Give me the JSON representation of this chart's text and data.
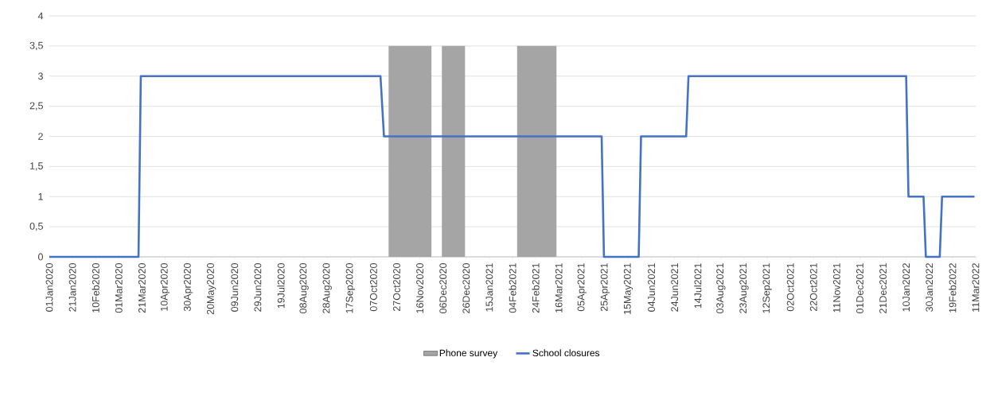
{
  "chart_data": {
    "type": "line",
    "legend": "bottom",
    "grid": "y",
    "marker": "none",
    "line_style": "solid",
    "xlim": [
      "2020-01-01",
      "2022-03-11"
    ],
    "xticks": [
      {
        "value": "2020-01-01",
        "label": "01Jan2020"
      },
      {
        "value": "2020-01-21",
        "label": "21Jan2020"
      },
      {
        "value": "2020-02-10",
        "label": "10Feb2020"
      },
      {
        "value": "2020-03-01",
        "label": "01Mar2020"
      },
      {
        "value": "2020-03-21",
        "label": "21Mar2020"
      },
      {
        "value": "2020-04-10",
        "label": "10Apr2020"
      },
      {
        "value": "2020-04-30",
        "label": "30Apr2020"
      },
      {
        "value": "2020-05-20",
        "label": "20May2020"
      },
      {
        "value": "2020-06-09",
        "label": "09Jun2020"
      },
      {
        "value": "2020-06-29",
        "label": "29Jun2020"
      },
      {
        "value": "2020-07-19",
        "label": "19Jul2020"
      },
      {
        "value": "2020-08-08",
        "label": "08Aug2020"
      },
      {
        "value": "2020-08-28",
        "label": "28Aug2020"
      },
      {
        "value": "2020-09-17",
        "label": "17Sep2020"
      },
      {
        "value": "2020-10-07",
        "label": "07Oct2020"
      },
      {
        "value": "2020-10-27",
        "label": "27Oct2020"
      },
      {
        "value": "2020-11-16",
        "label": "16Nov2020"
      },
      {
        "value": "2020-12-06",
        "label": "06Dec2020"
      },
      {
        "value": "2020-12-26",
        "label": "26Dec2020"
      },
      {
        "value": "2021-01-15",
        "label": "15Jan2021"
      },
      {
        "value": "2021-02-04",
        "label": "04Feb2021"
      },
      {
        "value": "2021-02-24",
        "label": "24Feb2021"
      },
      {
        "value": "2021-03-16",
        "label": "16Mar2021"
      },
      {
        "value": "2021-04-05",
        "label": "05Apr2021"
      },
      {
        "value": "2021-04-25",
        "label": "25Apr2021"
      },
      {
        "value": "2021-05-15",
        "label": "15May2021"
      },
      {
        "value": "2021-06-04",
        "label": "04Jun2021"
      },
      {
        "value": "2021-06-24",
        "label": "24Jun2021"
      },
      {
        "value": "2021-07-14",
        "label": "14Jul2021"
      },
      {
        "value": "2021-08-03",
        "label": "03Aug2021"
      },
      {
        "value": "2021-08-23",
        "label": "23Aug2021"
      },
      {
        "value": "2021-09-12",
        "label": "12Sep2021"
      },
      {
        "value": "2021-10-02",
        "label": "02Oct2021"
      },
      {
        "value": "2021-10-22",
        "label": "22Oct2021"
      },
      {
        "value": "2021-11-11",
        "label": "11Nov2021"
      },
      {
        "value": "2021-12-01",
        "label": "01Dec2021"
      },
      {
        "value": "2021-12-21",
        "label": "21Dec2021"
      },
      {
        "value": "2022-01-10",
        "label": "10Jan2022"
      },
      {
        "value": "2022-01-30",
        "label": "30Jan2022"
      },
      {
        "value": "2022-02-19",
        "label": "19Feb2022"
      },
      {
        "value": "2022-03-11",
        "label": "11Mar2022"
      }
    ],
    "ylim": [
      0,
      4
    ],
    "yticks": [
      0,
      {
        "value": 0.5,
        "label": "0,5"
      },
      1,
      {
        "value": 1.5,
        "label": "1,5"
      },
      2,
      {
        "value": 2.5,
        "label": "2,5"
      },
      3,
      {
        "value": 3.5,
        "label": "3,5"
      },
      4
    ],
    "series": [
      {
        "name": "Phone survey",
        "type": "area",
        "color": "#a5a5a5",
        "x": [
          "2020-10-20",
          "2020-11-26",
          "2020-12-01",
          "2020-12-05",
          "2020-12-25",
          "2021-01-20",
          "2021-02-08",
          "2021-03-14"
        ],
        "values": [
          3.5,
          3.5,
          null,
          3.5,
          3.5,
          null,
          3.5,
          3.5
        ]
      },
      {
        "name": "School closures",
        "color": "#4472c4",
        "x": [
          "2020-01-01",
          "2020-03-18",
          "2020-03-20",
          "2020-10-13",
          "2020-10-16",
          "2021-04-22",
          "2021-04-24",
          "2021-05-24",
          "2021-05-26",
          "2021-07-04",
          "2021-07-06",
          "2022-01-10",
          "2022-01-12",
          "2022-01-25",
          "2022-01-27",
          "2022-02-08",
          "2022-02-10",
          "2022-03-10"
        ],
        "values": [
          0,
          0,
          3,
          3,
          2,
          2,
          0,
          0,
          2,
          2,
          3,
          3,
          1,
          1,
          0,
          0,
          1,
          1
        ]
      }
    ]
  }
}
